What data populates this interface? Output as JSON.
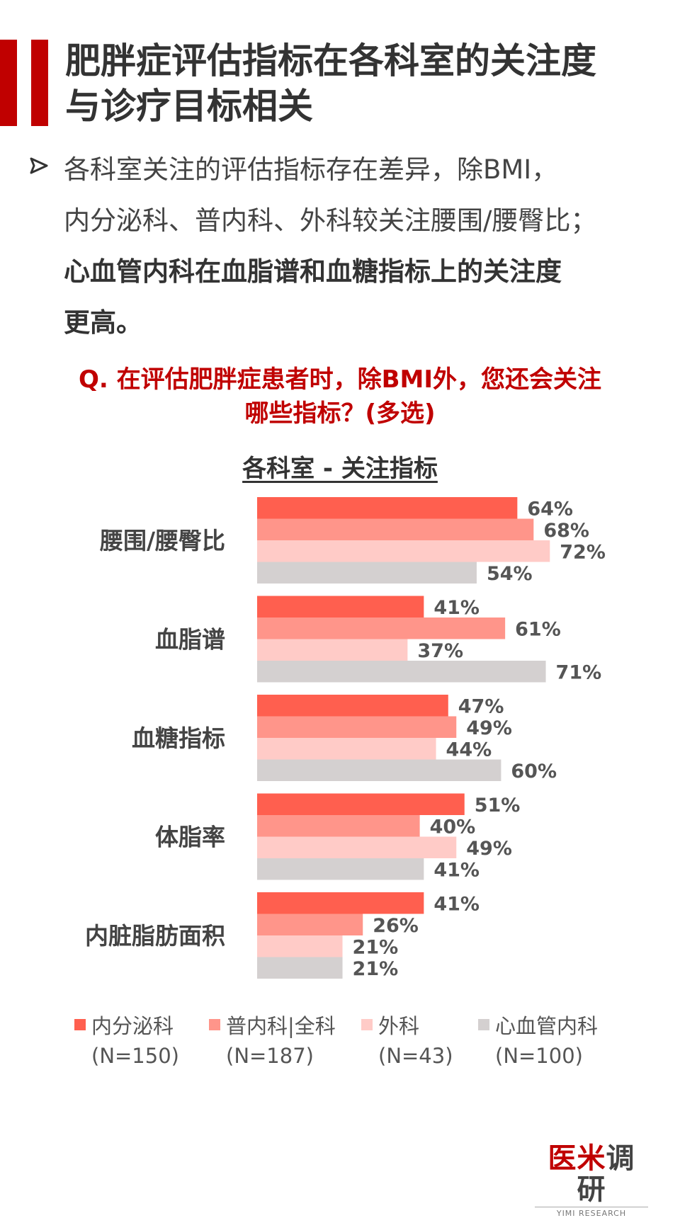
{
  "title_lines": [
    "肥胖症评估指标在各科室的关注度",
    "与诊疗目标相关"
  ],
  "bullet": {
    "line1": "各科室关注的评估指标存在差异，除BMI，",
    "line2": "内分泌科、普内科、外科较关注腰围/腰臀比；",
    "line3_bold": "心血管内科在血脂谱和血糖指标上的关注度",
    "line4_bold": "更高。"
  },
  "question_lines": [
    "Q. 在评估肥胖症患者时，除BMI外，您还会关注",
    "哪些指标？(多选)"
  ],
  "chart_data": {
    "type": "bar",
    "orientation": "horizontal",
    "title": "各科室 - 关注指标",
    "categories": [
      "腰围/腰臀比",
      "血脂谱",
      "血糖指标",
      "体脂率",
      "内脏脂肪面积"
    ],
    "series": [
      {
        "name": "内分泌科",
        "n": "(N=150)",
        "color": "#ff5f4f",
        "values": [
          64,
          41,
          47,
          51,
          41
        ]
      },
      {
        "name": "普内科|全科",
        "n": "(N=187)",
        "color": "#ff958a",
        "values": [
          68,
          61,
          49,
          40,
          26
        ]
      },
      {
        "name": "外科",
        "n": "(N=43)",
        "color": "#ffcbc7",
        "values": [
          72,
          37,
          44,
          49,
          21
        ]
      },
      {
        "name": "心血管内科",
        "n": "(N=100)",
        "color": "#d4d0d0",
        "values": [
          54,
          71,
          60,
          41,
          21
        ]
      }
    ],
    "value_suffix": "%",
    "xlim": [
      0,
      100
    ],
    "grid": false,
    "legend_position": "bottom"
  },
  "logo": {
    "cn_red": "医米",
    "cn_gray": "调研",
    "en": "YIMI RESEARCH"
  }
}
